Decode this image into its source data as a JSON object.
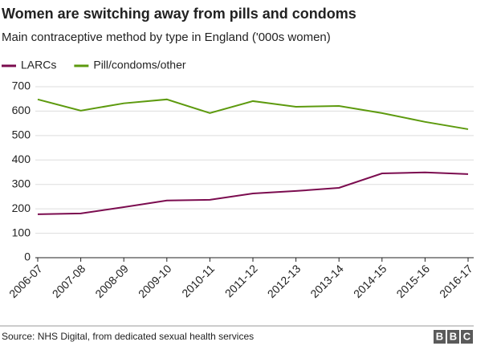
{
  "chart_data": {
    "type": "line",
    "title": "Women are switching away from pills and condoms",
    "subtitle": "Main contraceptive method by type in England ('000s women)",
    "categories": [
      "2006-07",
      "2007-08",
      "2008-09",
      "2009-10",
      "2010-11",
      "2011-12",
      "2012-13",
      "2013-14",
      "2014-15",
      "2015-16",
      "2016-17"
    ],
    "series": [
      {
        "name": "LARCs",
        "color": "#7b0c4f",
        "values": [
          178,
          181,
          207,
          234,
          237,
          263,
          273,
          286,
          345,
          349,
          342
        ]
      },
      {
        "name": "Pill/condoms/other",
        "color": "#5d9a0e",
        "values": [
          648,
          602,
          632,
          648,
          592,
          641,
          618,
          621,
          592,
          556,
          526
        ]
      }
    ],
    "ylim": [
      0,
      700
    ],
    "yticks": [
      0,
      100,
      200,
      300,
      400,
      500,
      600,
      700
    ],
    "grid": true,
    "legend": "top-left",
    "source": "Source: NHS Digital, from dedicated sexual health services",
    "logo": [
      "B",
      "B",
      "C"
    ]
  }
}
